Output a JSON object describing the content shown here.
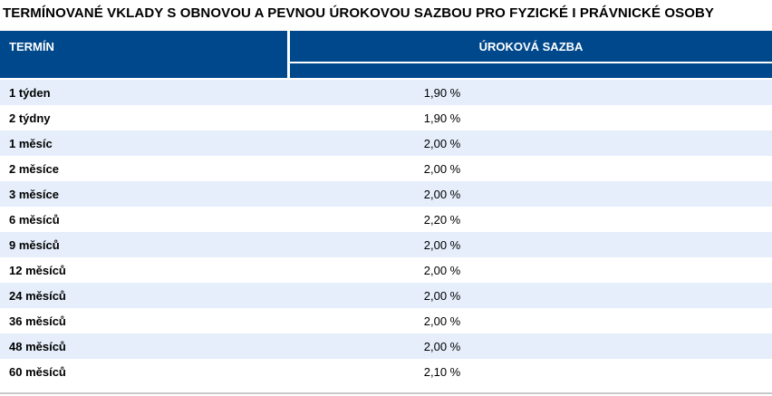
{
  "page": {
    "title": "TERMÍNOVANÉ VKLADY S OBNOVOU A PEVNOU ÚROKOVOU SAZBOU PRO FYZICKÉ I PRÁVNICKÉ OSOBY"
  },
  "table": {
    "columns": [
      {
        "label": "TERMÍN"
      },
      {
        "label": "ÚROKOVÁ SAZBA"
      }
    ],
    "rows": [
      {
        "term": "1 týden",
        "rate": "1,90 %"
      },
      {
        "term": "2 týdny",
        "rate": "1,90 %"
      },
      {
        "term": "1 měsíc",
        "rate": "2,00 %"
      },
      {
        "term": "2 měsíce",
        "rate": "2,00 %"
      },
      {
        "term": "3 měsíce",
        "rate": "2,00 %"
      },
      {
        "term": "6 měsíců",
        "rate": "2,20 %"
      },
      {
        "term": "9 měsíců",
        "rate": "2,00 %"
      },
      {
        "term": "12 měsíců",
        "rate": "2,00 %"
      },
      {
        "term": "24 měsíců",
        "rate": "2,00 %"
      },
      {
        "term": "36 měsíců",
        "rate": "2,00 %"
      },
      {
        "term": "48 měsíců",
        "rate": "2,00 %"
      },
      {
        "term": "60 měsíců",
        "rate": "2,10 %"
      }
    ]
  },
  "colors": {
    "header_bg": "#00488c",
    "row_alt_bg": "#e5eefa",
    "divider": "#c9c9c9",
    "header_text": "#ffffff",
    "body_text": "#000000"
  }
}
